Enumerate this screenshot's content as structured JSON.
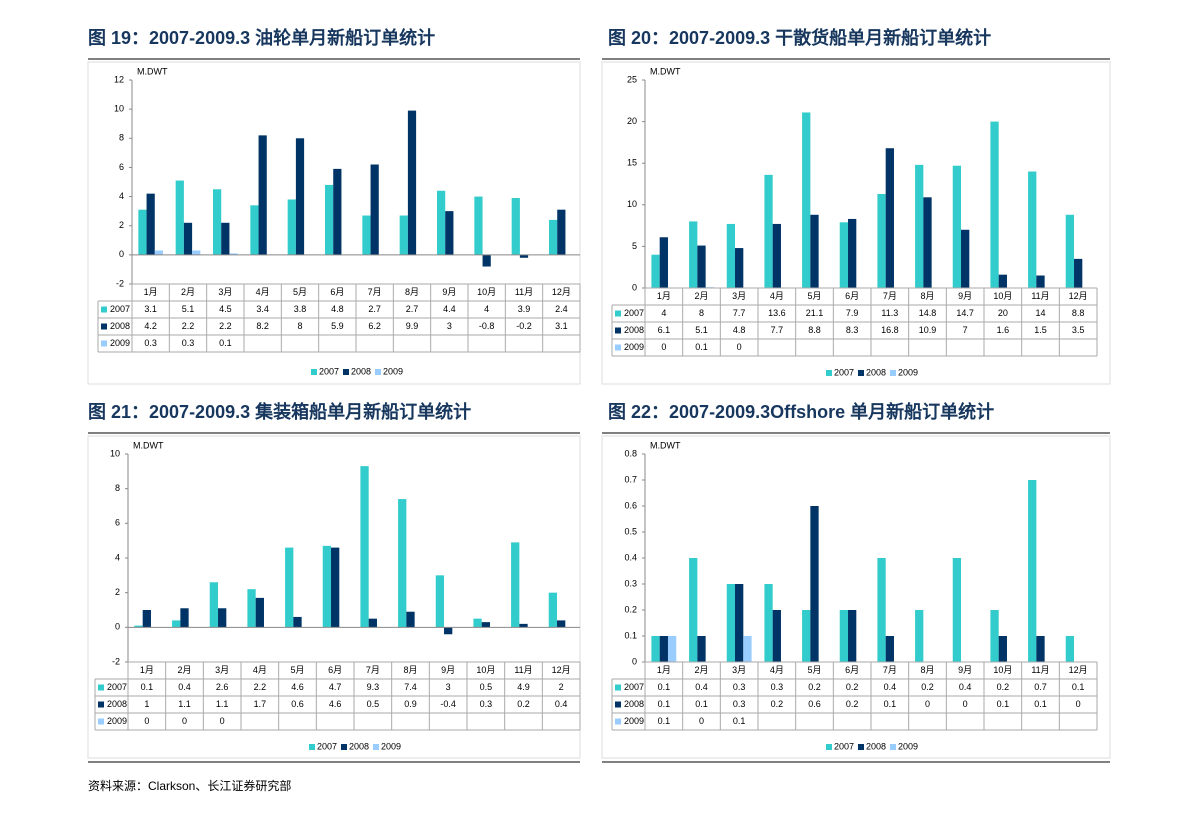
{
  "chart_data": [
    {
      "type": "bar",
      "title": "图 19：2007-2009.3 油轮单月新船订单统计",
      "unit": "M.DWT",
      "categories": [
        "1月",
        "2月",
        "3月",
        "4月",
        "5月",
        "6月",
        "7月",
        "8月",
        "9月",
        "10月",
        "11月",
        "12月"
      ],
      "series": [
        {
          "name": "2007",
          "color": "#33cccc",
          "values": [
            3.1,
            5.1,
            4.5,
            3.4,
            3.8,
            4.8,
            2.7,
            2.7,
            4.4,
            4,
            3.9,
            2.4
          ]
        },
        {
          "name": "2008",
          "color": "#003366",
          "values": [
            4.2,
            2.2,
            2.2,
            8.2,
            8,
            5.9,
            6.2,
            9.9,
            3,
            -0.8,
            -0.2,
            3.1
          ]
        },
        {
          "name": "2009",
          "color": "#99ccff",
          "values": [
            0.3,
            0.3,
            0.1,
            null,
            null,
            null,
            null,
            null,
            null,
            null,
            null,
            null
          ]
        }
      ],
      "ylim": [
        -2,
        12
      ],
      "yticks": [
        -2,
        0,
        2,
        4,
        6,
        8,
        10,
        12
      ],
      "legend": "bottom"
    },
    {
      "type": "bar",
      "title": "图 20：2007-2009.3 干散货船单月新船订单统计",
      "unit": "M.DWT",
      "categories": [
        "1月",
        "2月",
        "3月",
        "4月",
        "5月",
        "6月",
        "7月",
        "8月",
        "9月",
        "10月",
        "11月",
        "12月"
      ],
      "series": [
        {
          "name": "2007",
          "color": "#33cccc",
          "values": [
            4,
            8,
            7.7,
            13.6,
            21.1,
            7.9,
            11.3,
            14.8,
            14.7,
            20,
            14,
            8.8
          ]
        },
        {
          "name": "2008",
          "color": "#003366",
          "values": [
            6.1,
            5.1,
            4.8,
            7.7,
            8.8,
            8.3,
            16.8,
            10.9,
            7,
            1.6,
            1.5,
            3.5
          ]
        },
        {
          "name": "2009",
          "color": "#99ccff",
          "values": [
            0,
            0.1,
            0,
            null,
            null,
            null,
            null,
            null,
            null,
            null,
            null,
            null
          ]
        }
      ],
      "ylim": [
        0,
        25
      ],
      "yticks": [
        0,
        5,
        10,
        15,
        20,
        25
      ],
      "legend": "bottom"
    },
    {
      "type": "bar",
      "title": "图 21：2007-2009.3 集装箱船单月新船订单统计",
      "unit": "M.DWT",
      "categories": [
        "1月",
        "2月",
        "3月",
        "4月",
        "5月",
        "6月",
        "7月",
        "8月",
        "9月",
        "10月",
        "11月",
        "12月"
      ],
      "series": [
        {
          "name": "2007",
          "color": "#33cccc",
          "values": [
            0.1,
            0.4,
            2.6,
            2.2,
            4.6,
            4.7,
            9.3,
            7.4,
            3,
            0.5,
            4.9,
            2
          ]
        },
        {
          "name": "2008",
          "color": "#003366",
          "values": [
            1,
            1.1,
            1.1,
            1.7,
            0.6,
            4.6,
            0.5,
            0.9,
            -0.4,
            0.3,
            0.2,
            0.4
          ]
        },
        {
          "name": "2009",
          "color": "#99ccff",
          "values": [
            0,
            0,
            0,
            null,
            null,
            null,
            null,
            null,
            null,
            null,
            null,
            null
          ]
        }
      ],
      "ylim": [
        -2,
        10
      ],
      "yticks": [
        -2,
        0,
        2,
        4,
        6,
        8,
        10
      ],
      "legend": "bottom"
    },
    {
      "type": "bar",
      "title": "图 22：2007-2009.3Offshore 单月新船订单统计",
      "unit": "M.DWT",
      "categories": [
        "1月",
        "2月",
        "3月",
        "4月",
        "5月",
        "6月",
        "7月",
        "8月",
        "9月",
        "10月",
        "11月",
        "12月"
      ],
      "series": [
        {
          "name": "2007",
          "color": "#33cccc",
          "values": [
            0.1,
            0.4,
            0.3,
            0.3,
            0.2,
            0.2,
            0.4,
            0.2,
            0.4,
            0.2,
            0.7,
            0.1
          ]
        },
        {
          "name": "2008",
          "color": "#003366",
          "values": [
            0.1,
            0.1,
            0.3,
            0.2,
            0.6,
            0.2,
            0.1,
            0,
            0,
            0.1,
            0.1,
            0
          ]
        },
        {
          "name": "2009",
          "color": "#99ccff",
          "values": [
            0.1,
            0,
            0.1,
            null,
            null,
            null,
            null,
            null,
            null,
            null,
            null,
            null
          ]
        }
      ],
      "ylim": [
        0,
        0.8
      ],
      "yticks": [
        0,
        0.1,
        0.2,
        0.3,
        0.4,
        0.5,
        0.6,
        0.7,
        0.8
      ],
      "legend": "bottom"
    }
  ],
  "source": "资料来源：Clarkson、长江证券研究部"
}
